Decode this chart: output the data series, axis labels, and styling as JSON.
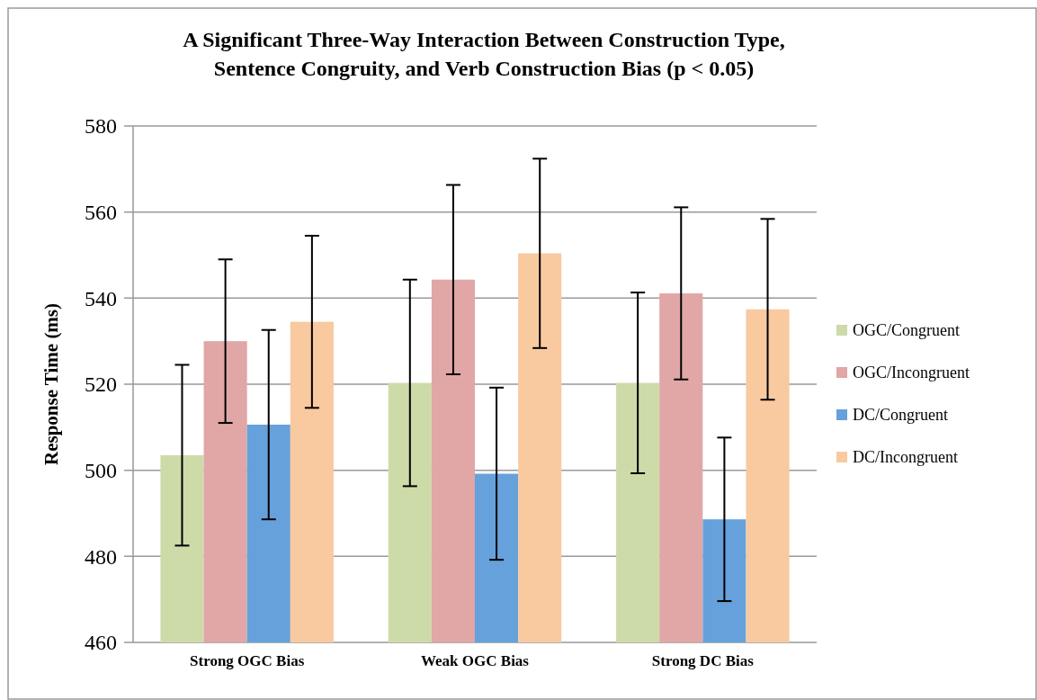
{
  "chart_data": {
    "type": "bar",
    "title": "A Significant Three-Way Interaction Between Construction Type, Sentence Congruity, and Verb Construction Bias (p < 0.05)",
    "ylabel": "Response Time (ms)",
    "categories": [
      "Strong OGC Bias",
      "Weak OGC Bias",
      "Strong DC Bias"
    ],
    "series": [
      {
        "name": "OGC/Congruent",
        "color": "#cddba9",
        "values": [
          503.5,
          520.3,
          520.3
        ],
        "errors": [
          21,
          24,
          21
        ]
      },
      {
        "name": "OGC/Incongruent",
        "color": "#e0a7a6",
        "values": [
          530,
          544.3,
          541.1
        ],
        "errors": [
          19,
          22,
          20
        ]
      },
      {
        "name": "DC/Congruent",
        "color": "#66a1db",
        "values": [
          510.6,
          499.2,
          488.6
        ],
        "errors": [
          22,
          20,
          19
        ]
      },
      {
        "name": "DC/Incongruent",
        "color": "#f9c9a0",
        "values": [
          534.5,
          550.4,
          537.4
        ],
        "errors": [
          20,
          22,
          21
        ]
      }
    ],
    "ylim": [
      460,
      580
    ],
    "yticks": [
      460,
      480,
      500,
      520,
      540,
      560,
      580
    ],
    "grid": "y",
    "legend": "right"
  }
}
